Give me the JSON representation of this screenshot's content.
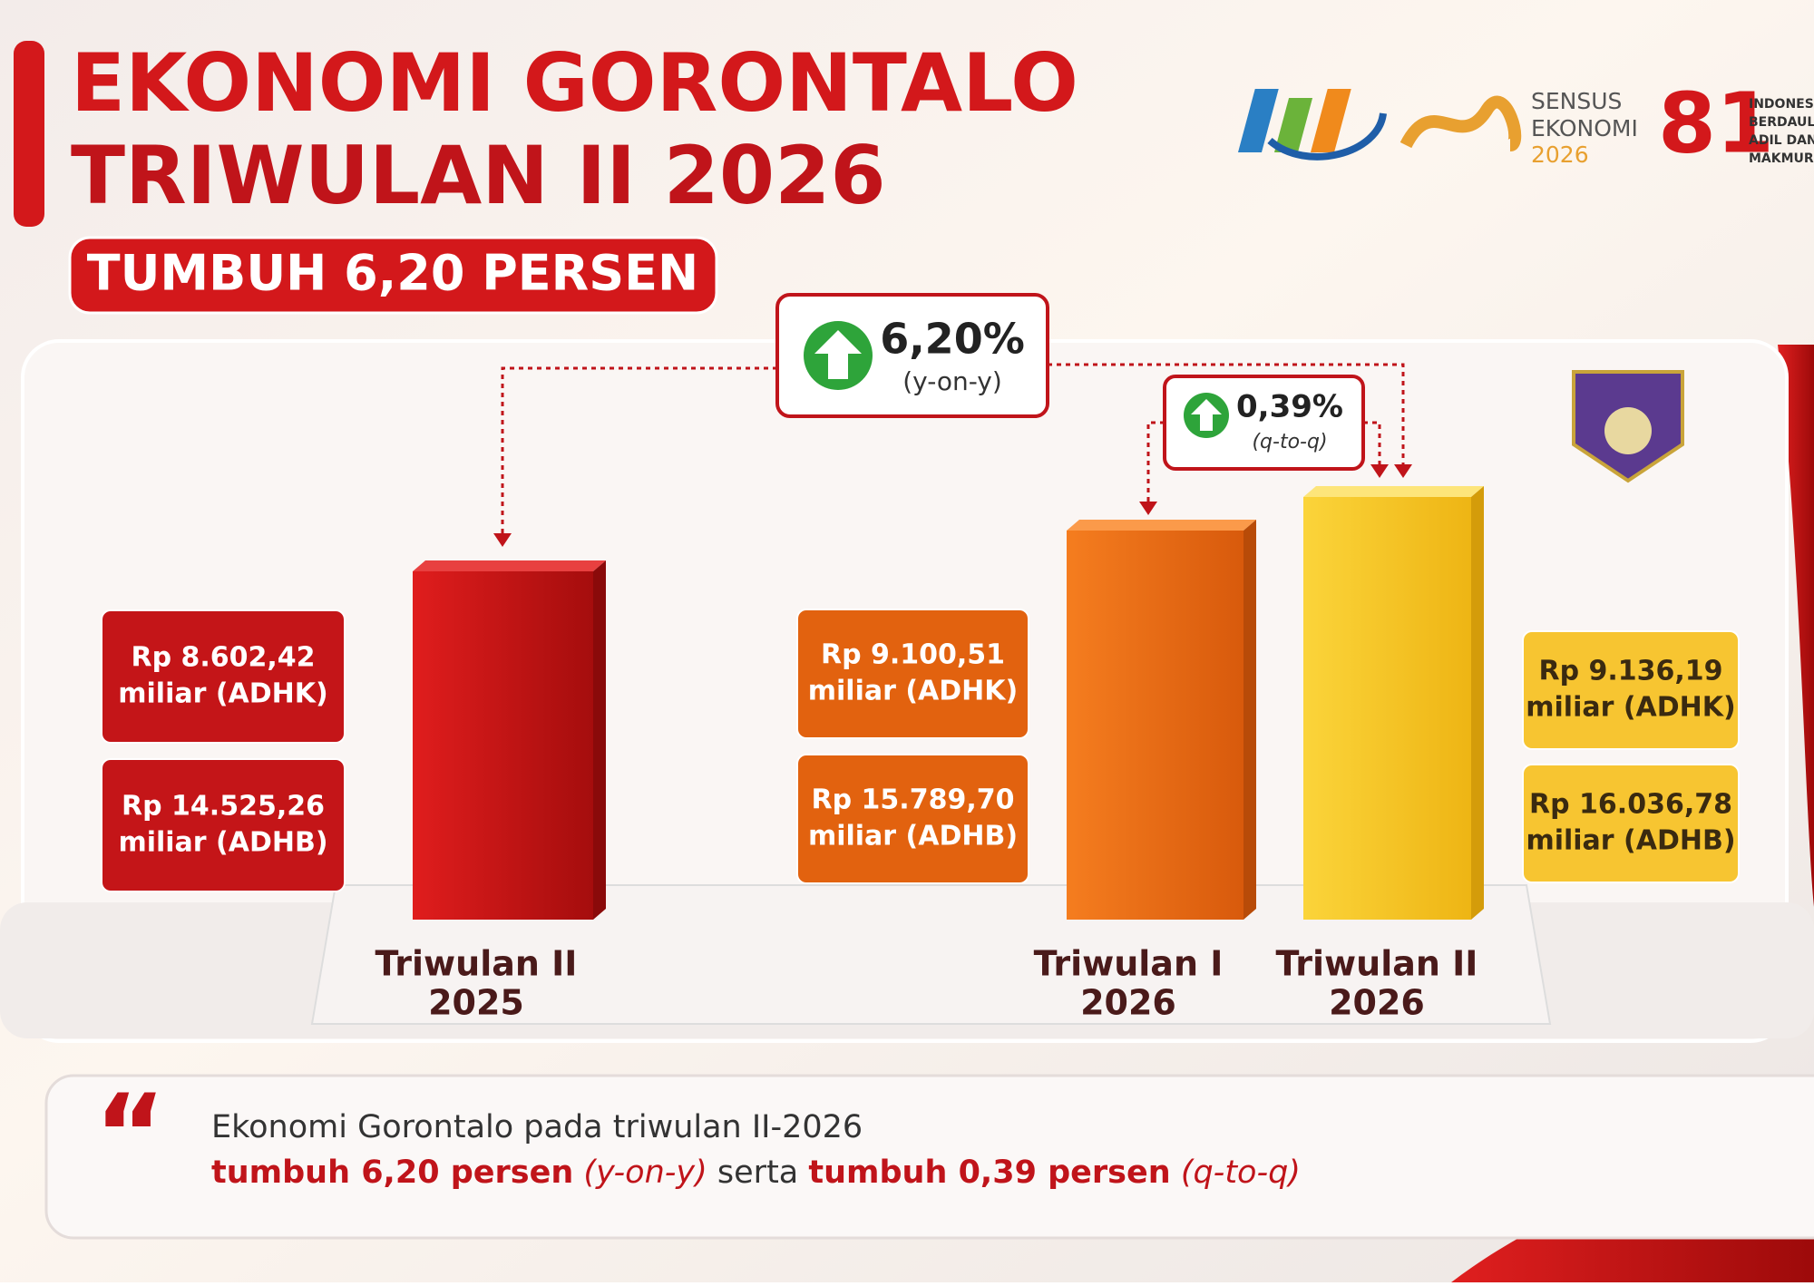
{
  "header": {
    "title_lines": [
      "EKONOMI GORONTALO",
      "TRIWULAN II 2026"
    ],
    "subtitle": "TUMBUH 6,20 PERSEN"
  },
  "logos": {
    "sensus": [
      "SENSUS",
      "EKONOMI",
      "2026"
    ],
    "anniversary": "81",
    "motto": [
      "INDONESIA",
      "BERDAULAT",
      "ADIL DAN",
      "MAKMUR"
    ]
  },
  "badges": [
    {
      "value": "6,20%",
      "label": "(y-on-y)"
    },
    {
      "value": "0,39%",
      "label": "(q-to-q)"
    }
  ],
  "periods": [
    {
      "label": [
        "Triwulan II",
        "2025"
      ],
      "adhk": [
        "Rp 8.602,42",
        "miliar (ADHK)"
      ],
      "adhb": [
        "Rp 14.525,26",
        "miliar (ADHB)"
      ]
    },
    {
      "label": [
        "Triwulan I",
        "2026"
      ],
      "adhk": [
        "Rp 9.100,51",
        "miliar (ADHK)"
      ],
      "adhb": [
        "Rp 15.789,70",
        "miliar (ADHB)"
      ]
    },
    {
      "label": [
        "Triwulan II",
        "2026"
      ],
      "adhk": [
        "Rp 9.136,19",
        "miliar (ADHK)"
      ],
      "adhb": [
        "Rp 16.036,78",
        "miliar (ADHB)"
      ]
    }
  ],
  "quote": {
    "line1": "Ekonomi Gorontalo pada triwulan II-2026",
    "line2": [
      "tumbuh 6,20 persen",
      "(y-on-y)",
      "serta",
      "tumbuh 0,39 persen",
      "(q-to-q)"
    ]
  }
}
